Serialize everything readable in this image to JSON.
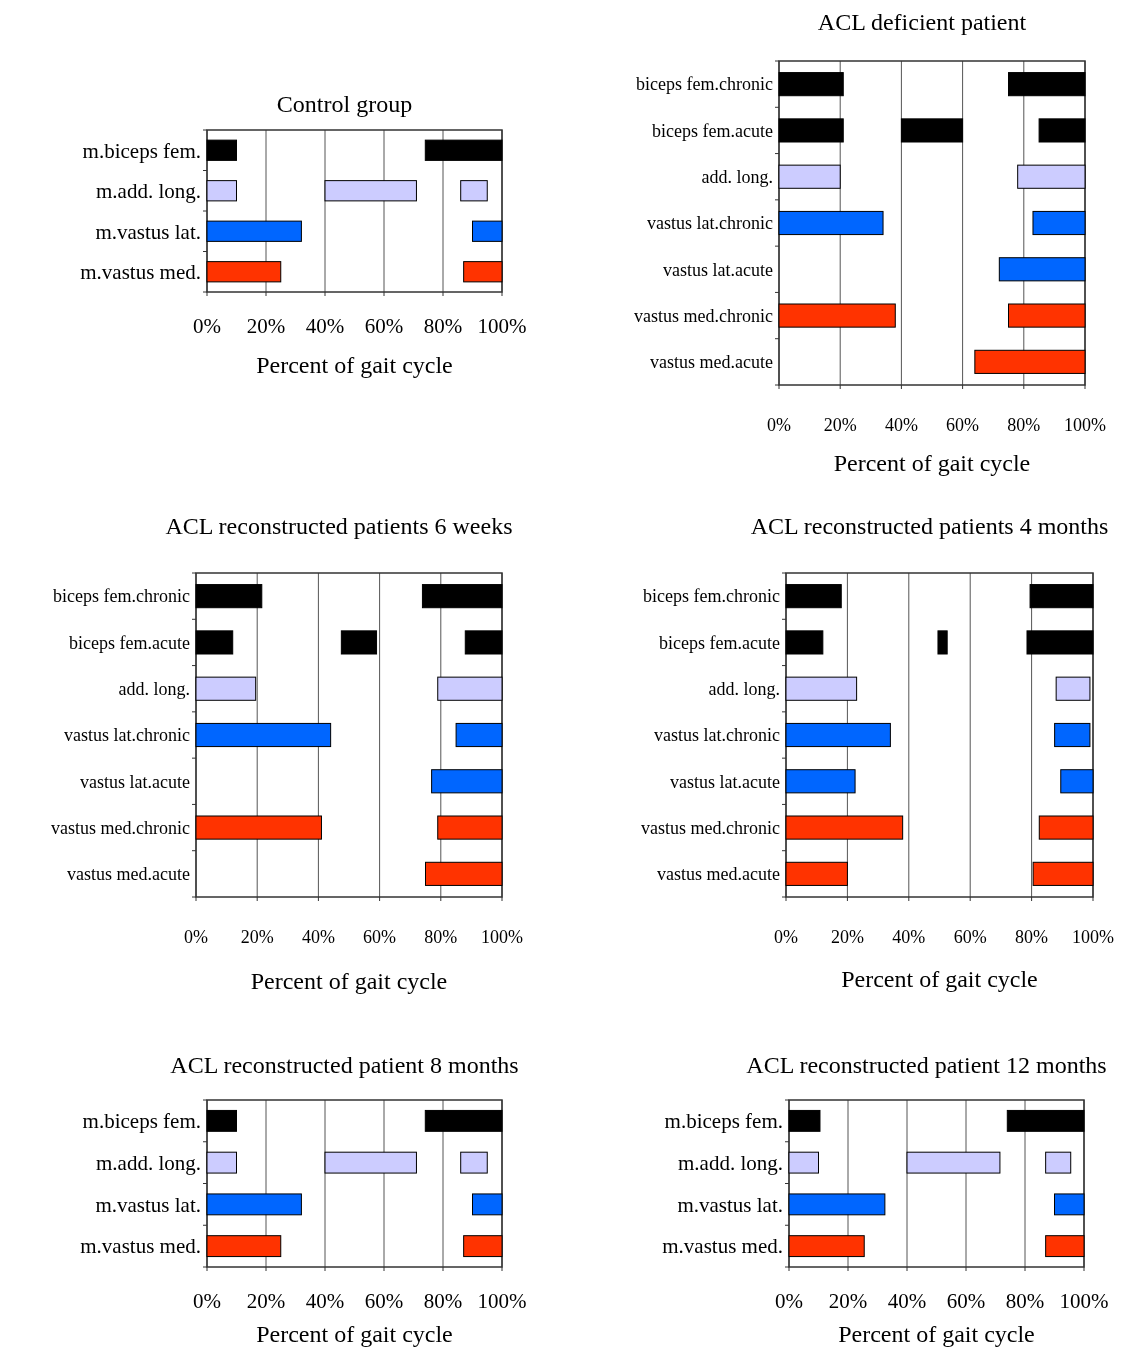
{
  "chart_data": [
    {
      "type": "bar",
      "orientation": "horizontal",
      "title": "Control group",
      "xlabel": "Percent of gait cycle",
      "categories": [
        "m.biceps fem.",
        "m.add. long.",
        "m.vastus lat.",
        "m.vastus med."
      ],
      "xlim": [
        0,
        100
      ],
      "xticks": [
        {
          "value": 0,
          "label": "0%"
        },
        {
          "value": 20,
          "label": "20%"
        },
        {
          "value": 40,
          "label": "40%"
        },
        {
          "value": 60,
          "label": "60%"
        },
        {
          "value": 80,
          "label": "80%"
        },
        {
          "value": 100,
          "label": "100%"
        }
      ],
      "grid": "x",
      "series": [
        {
          "base": [
            0,
            0,
            0,
            0
          ],
          "values": [
            10,
            10,
            32,
            25
          ],
          "colors": [
            "#000000",
            "#ccccff",
            "#0066ff",
            "#ff3300"
          ]
        },
        {
          "base": [
            74,
            40,
            90,
            87
          ],
          "values": [
            26,
            31,
            10,
            13
          ],
          "colors": [
            "#000000",
            "#ccccff",
            "#0066ff",
            "#ff3300"
          ]
        },
        {
          "base": [
            null,
            86,
            null,
            null
          ],
          "values": [
            null,
            9,
            null,
            null
          ],
          "colors": [
            null,
            "#ccccff",
            null,
            null
          ]
        }
      ]
    },
    {
      "type": "bar",
      "orientation": "horizontal",
      "title": "ACL deficient patient",
      "xlabel": "Percent of gait cycle",
      "categories": [
        "biceps fem.chronic",
        "biceps fem.acute",
        "add. long.",
        "vastus lat.chronic",
        "vastus lat.acute",
        "vastus med.chronic",
        "vastus med.acute"
      ],
      "xlim": [
        0,
        100
      ],
      "xticks": [
        {
          "value": 0,
          "label": "0%"
        },
        {
          "value": 20,
          "label": "20%"
        },
        {
          "value": 40,
          "label": "40%"
        },
        {
          "value": 60,
          "label": "60%"
        },
        {
          "value": 80,
          "label": "80%"
        },
        {
          "value": 100,
          "label": "100%"
        }
      ],
      "grid": "x",
      "series": [
        {
          "base": [
            0,
            0,
            0,
            0,
            null,
            0,
            null
          ],
          "values": [
            21,
            21,
            20,
            34,
            null,
            38,
            null
          ],
          "colors": [
            "#000000",
            "#000000",
            "#ccccff",
            "#0066ff",
            null,
            "#ff3300",
            null
          ]
        },
        {
          "base": [
            75,
            40,
            78,
            83,
            72,
            75,
            64
          ],
          "values": [
            25,
            20,
            22,
            17,
            28,
            25,
            36
          ],
          "colors": [
            "#000000",
            "#000000",
            "#ccccff",
            "#0066ff",
            "#0066ff",
            "#ff3300",
            "#ff3300"
          ]
        },
        {
          "base": [
            null,
            85,
            null,
            null,
            null,
            null,
            null
          ],
          "values": [
            null,
            15,
            null,
            null,
            null,
            null,
            null
          ],
          "colors": [
            null,
            "#000000",
            null,
            null,
            null,
            null,
            null
          ]
        }
      ]
    },
    {
      "type": "bar",
      "orientation": "horizontal",
      "title": "ACL reconstructed patients 6 weeks",
      "xlabel": "Percent of gait cycle",
      "categories": [
        "biceps fem.chronic",
        "biceps fem.acute",
        "add. long.",
        "vastus lat.chronic",
        "vastus lat.acute",
        "vastus med.chronic",
        "vastus med.acute"
      ],
      "xlim": [
        0,
        100
      ],
      "xticks": [
        {
          "value": 0,
          "label": "0%"
        },
        {
          "value": 20,
          "label": "20%"
        },
        {
          "value": 40,
          "label": "40%"
        },
        {
          "value": 60,
          "label": "60%"
        },
        {
          "value": 80,
          "label": "80%"
        },
        {
          "value": 100,
          "label": "100%"
        }
      ],
      "grid": "x",
      "series": [
        {
          "base": [
            0,
            0,
            0,
            0,
            null,
            0,
            null
          ],
          "values": [
            21.5,
            12,
            19.5,
            44,
            null,
            41,
            null
          ],
          "colors": [
            "#000000",
            "#000000",
            "#ccccff",
            "#0066ff",
            null,
            "#ff3300",
            null
          ]
        },
        {
          "base": [
            74,
            47.5,
            79,
            85,
            77,
            79,
            75
          ],
          "values": [
            26,
            11.5,
            21,
            15,
            23,
            21,
            25
          ],
          "colors": [
            "#000000",
            "#000000",
            "#ccccff",
            "#0066ff",
            "#0066ff",
            "#ff3300",
            "#ff3300"
          ]
        },
        {
          "base": [
            null,
            88,
            null,
            null,
            null,
            null,
            null
          ],
          "values": [
            null,
            12,
            null,
            null,
            null,
            null,
            null
          ],
          "colors": [
            null,
            "#000000",
            null,
            null,
            null,
            null,
            null
          ]
        }
      ]
    },
    {
      "type": "bar",
      "orientation": "horizontal",
      "title": "ACL reconstructed patients 4 months",
      "xlabel": "Percent of gait cycle",
      "categories": [
        "biceps fem.chronic",
        "biceps fem.acute",
        "add. long.",
        "vastus lat.chronic",
        "vastus lat.acute",
        "vastus med.chronic",
        "vastus med.acute"
      ],
      "xlim": [
        0,
        100
      ],
      "xticks": [
        {
          "value": 0,
          "label": "0%"
        },
        {
          "value": 20,
          "label": "20%"
        },
        {
          "value": 40,
          "label": "40%"
        },
        {
          "value": 60,
          "label": "60%"
        },
        {
          "value": 80,
          "label": "80%"
        },
        {
          "value": 100,
          "label": "100%"
        }
      ],
      "grid": "x",
      "series": [
        {
          "base": [
            0,
            0,
            0,
            0,
            0,
            0,
            0
          ],
          "values": [
            18,
            12,
            23,
            34,
            22.5,
            38,
            20
          ],
          "colors": [
            "#000000",
            "#000000",
            "#ccccff",
            "#0066ff",
            "#0066ff",
            "#ff3300",
            "#ff3300"
          ]
        },
        {
          "base": [
            79.5,
            49.5,
            88,
            87.5,
            89.5,
            82.5,
            80.5
          ],
          "values": [
            20.5,
            3,
            11,
            11.5,
            10.5,
            17.5,
            19.5
          ],
          "colors": [
            "#000000",
            "#000000",
            "#ccccff",
            "#0066ff",
            "#0066ff",
            "#ff3300",
            "#ff3300"
          ]
        },
        {
          "base": [
            null,
            78.5,
            null,
            null,
            null,
            null,
            null
          ],
          "values": [
            null,
            21.5,
            null,
            null,
            null,
            null,
            null
          ],
          "colors": [
            null,
            "#000000",
            null,
            null,
            null,
            null,
            null
          ]
        }
      ]
    },
    {
      "type": "bar",
      "orientation": "horizontal",
      "title": "ACL reconstructed patient 8 months",
      "xlabel": "Percent of gait cycle",
      "categories": [
        "m.biceps fem.",
        "m.add. long.",
        "m.vastus lat.",
        "m.vastus med."
      ],
      "xlim": [
        0,
        100
      ],
      "xticks": [
        {
          "value": 0,
          "label": "0%"
        },
        {
          "value": 20,
          "label": "20%"
        },
        {
          "value": 40,
          "label": "40%"
        },
        {
          "value": 60,
          "label": "60%"
        },
        {
          "value": 80,
          "label": "80%"
        },
        {
          "value": 100,
          "label": "100%"
        }
      ],
      "grid": "x",
      "series": [
        {
          "base": [
            0,
            0,
            0,
            0
          ],
          "values": [
            10,
            10,
            32,
            25
          ],
          "colors": [
            "#000000",
            "#ccccff",
            "#0066ff",
            "#ff3300"
          ]
        },
        {
          "base": [
            74,
            40,
            90,
            87
          ],
          "values": [
            26,
            31,
            10,
            13
          ],
          "colors": [
            "#000000",
            "#ccccff",
            "#0066ff",
            "#ff3300"
          ]
        },
        {
          "base": [
            null,
            86,
            null,
            null
          ],
          "values": [
            null,
            9,
            null,
            null
          ],
          "colors": [
            null,
            "#ccccff",
            null,
            null
          ]
        }
      ]
    },
    {
      "type": "bar",
      "orientation": "horizontal",
      "title": "ACL reconstructed patient 12 months",
      "xlabel": "Percent of gait cycle",
      "categories": [
        "m.biceps fem.",
        "m.add. long.",
        "m.vastus lat.",
        "m.vastus med."
      ],
      "xlim": [
        0,
        100
      ],
      "xticks": [
        {
          "value": 0,
          "label": "0%"
        },
        {
          "value": 20,
          "label": "20%"
        },
        {
          "value": 40,
          "label": "40%"
        },
        {
          "value": 60,
          "label": "60%"
        },
        {
          "value": 80,
          "label": "80%"
        },
        {
          "value": 100,
          "label": "100%"
        }
      ],
      "grid": "x",
      "series": [
        {
          "base": [
            0,
            0,
            0,
            0
          ],
          "values": [
            10.5,
            10,
            32.5,
            25.5
          ],
          "colors": [
            "#000000",
            "#ccccff",
            "#0066ff",
            "#ff3300"
          ]
        },
        {
          "base": [
            74,
            40,
            90,
            87
          ],
          "values": [
            26,
            31.5,
            10,
            13
          ],
          "colors": [
            "#000000",
            "#ccccff",
            "#0066ff",
            "#ff3300"
          ]
        },
        {
          "base": [
            null,
            87,
            null,
            null
          ],
          "values": [
            null,
            8.5,
            null,
            null
          ],
          "colors": [
            null,
            "#ccccff",
            null,
            null
          ]
        }
      ]
    }
  ]
}
